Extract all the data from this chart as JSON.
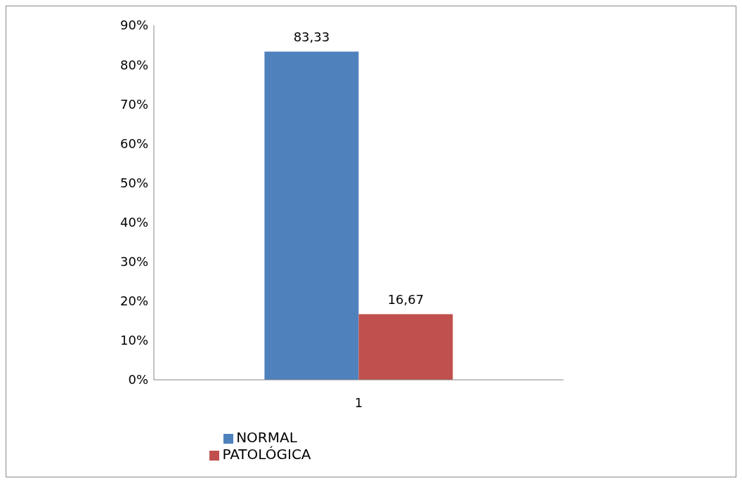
{
  "chart_data": {
    "type": "bar",
    "categories": [
      "1"
    ],
    "series": [
      {
        "name": "NORMAL",
        "color": "#4f81bd",
        "values": [
          83.33
        ],
        "value_labels": [
          "83,33"
        ]
      },
      {
        "name": "PATOLÓGICA",
        "color": "#c0504d",
        "values": [
          16.67
        ],
        "value_labels": [
          "16,67"
        ]
      }
    ],
    "ylim": [
      0,
      90
    ],
    "yticks": [
      {
        "value": 0,
        "label": "0%"
      },
      {
        "value": 10,
        "label": "10%"
      },
      {
        "value": 20,
        "label": "20%"
      },
      {
        "value": 30,
        "label": "30%"
      },
      {
        "value": 40,
        "label": "40%"
      },
      {
        "value": 50,
        "label": "50%"
      },
      {
        "value": 60,
        "label": "60%"
      },
      {
        "value": 70,
        "label": "70%"
      },
      {
        "value": 80,
        "label": "80%"
      },
      {
        "value": 90,
        "label": "90%"
      }
    ],
    "grid": false,
    "legend": "bottom"
  }
}
